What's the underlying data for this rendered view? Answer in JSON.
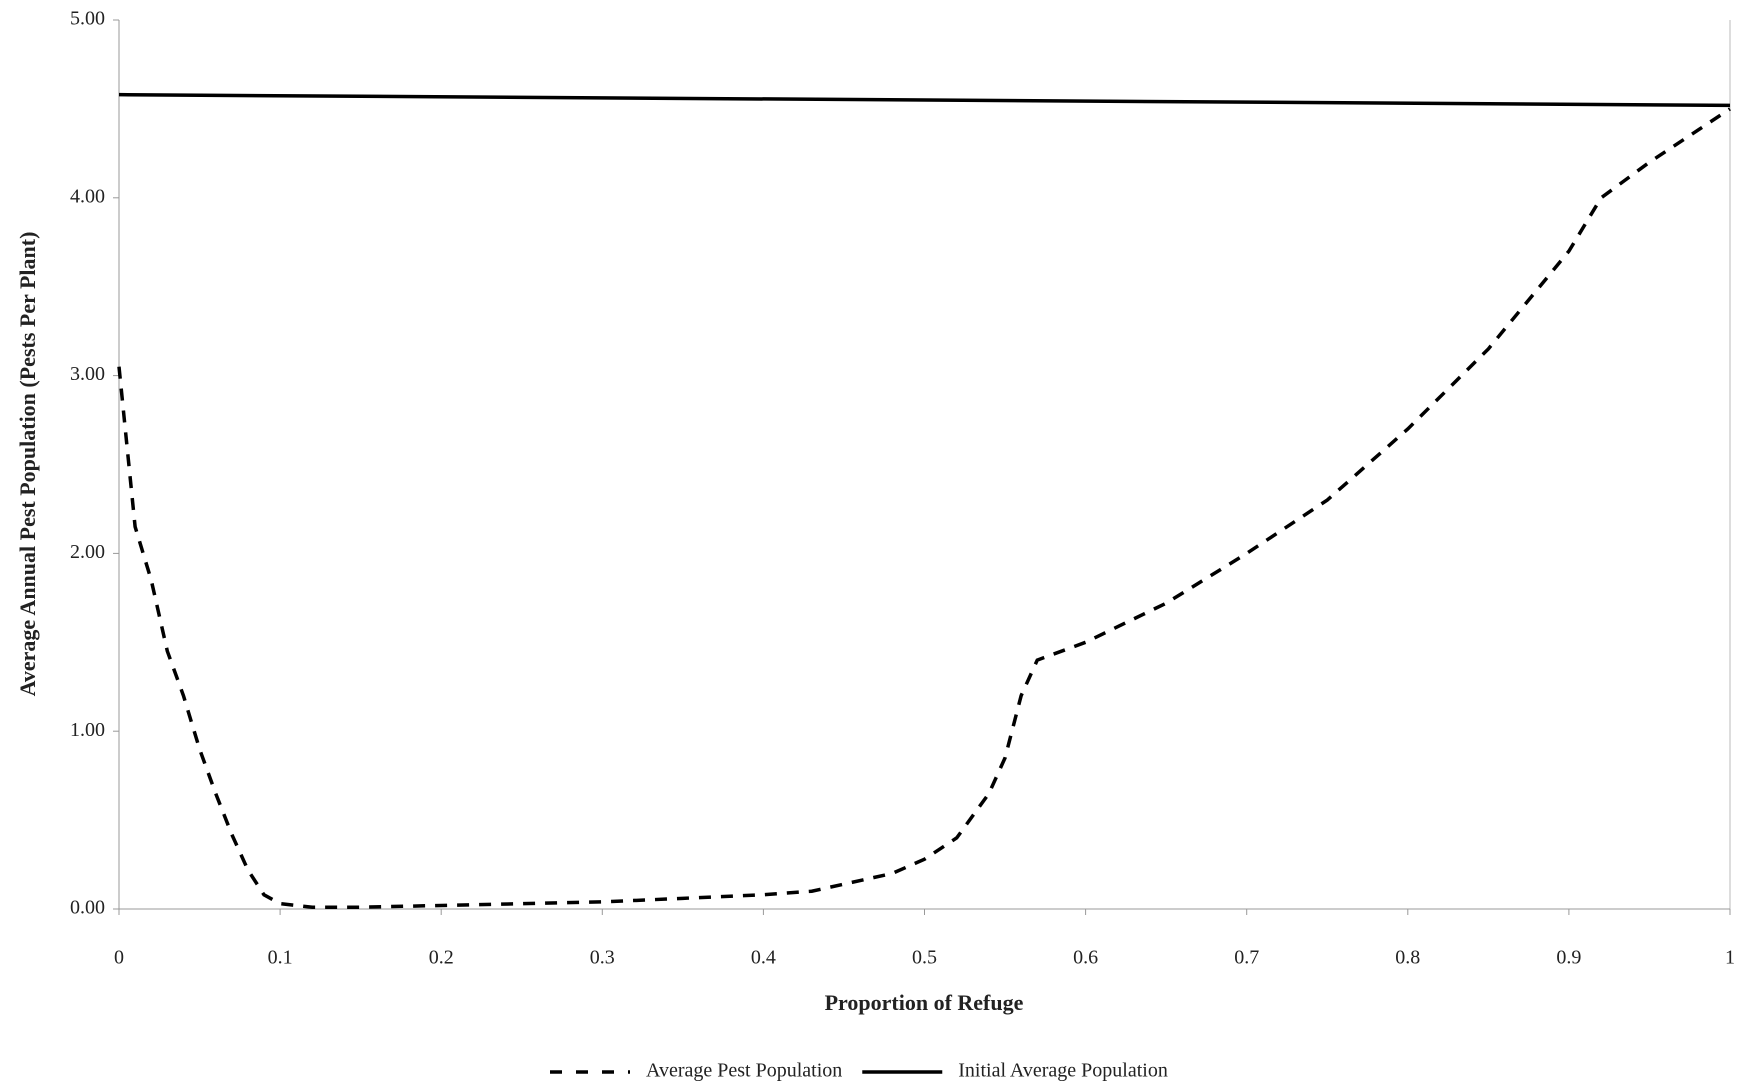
{
  "chart_data": {
    "type": "line",
    "x_label": "Proportion of Refuge",
    "y_label": "Average Annual Pest Population (Pests Per Plant)",
    "xlim": [
      0,
      1
    ],
    "xticks": [
      0,
      0.1,
      0.2,
      0.3,
      0.4,
      0.5,
      0.6,
      0.7,
      0.8,
      0.9,
      1
    ],
    "ylim": [
      0,
      5
    ],
    "yticks": [
      {
        "value": 0,
        "label": "0.00"
      },
      {
        "value": 1,
        "label": "1.00"
      },
      {
        "value": 2,
        "label": "2.00"
      },
      {
        "value": 3,
        "label": "3.00"
      },
      {
        "value": 4,
        "label": "4.00"
      },
      {
        "value": 5,
        "label": "5.00"
      }
    ],
    "legend": "bottom",
    "series": [
      {
        "name": "Average Pest Population",
        "color": "#000000",
        "dash": true,
        "x": [
          0,
          0.01,
          0.02,
          0.03,
          0.04,
          0.05,
          0.06,
          0.07,
          0.08,
          0.09,
          0.1,
          0.12,
          0.15,
          0.2,
          0.25,
          0.3,
          0.35,
          0.4,
          0.43,
          0.45,
          0.48,
          0.5,
          0.52,
          0.54,
          0.55,
          0.56,
          0.57,
          0.6,
          0.65,
          0.7,
          0.75,
          0.8,
          0.85,
          0.9,
          0.92,
          0.95,
          1
        ],
        "values": [
          3.05,
          2.15,
          1.85,
          1.45,
          1.2,
          0.9,
          0.65,
          0.42,
          0.22,
          0.08,
          0.03,
          0.01,
          0.01,
          0.02,
          0.03,
          0.04,
          0.06,
          0.08,
          0.1,
          0.14,
          0.2,
          0.28,
          0.4,
          0.65,
          0.85,
          1.2,
          1.4,
          1.5,
          1.72,
          2.0,
          2.3,
          2.7,
          3.15,
          3.7,
          4.0,
          4.2,
          4.5
        ]
      },
      {
        "name": "Initial Average Population",
        "color": "#000000",
        "dash": false,
        "x": [
          0,
          1
        ],
        "values": [
          4.58,
          4.52
        ]
      }
    ]
  }
}
